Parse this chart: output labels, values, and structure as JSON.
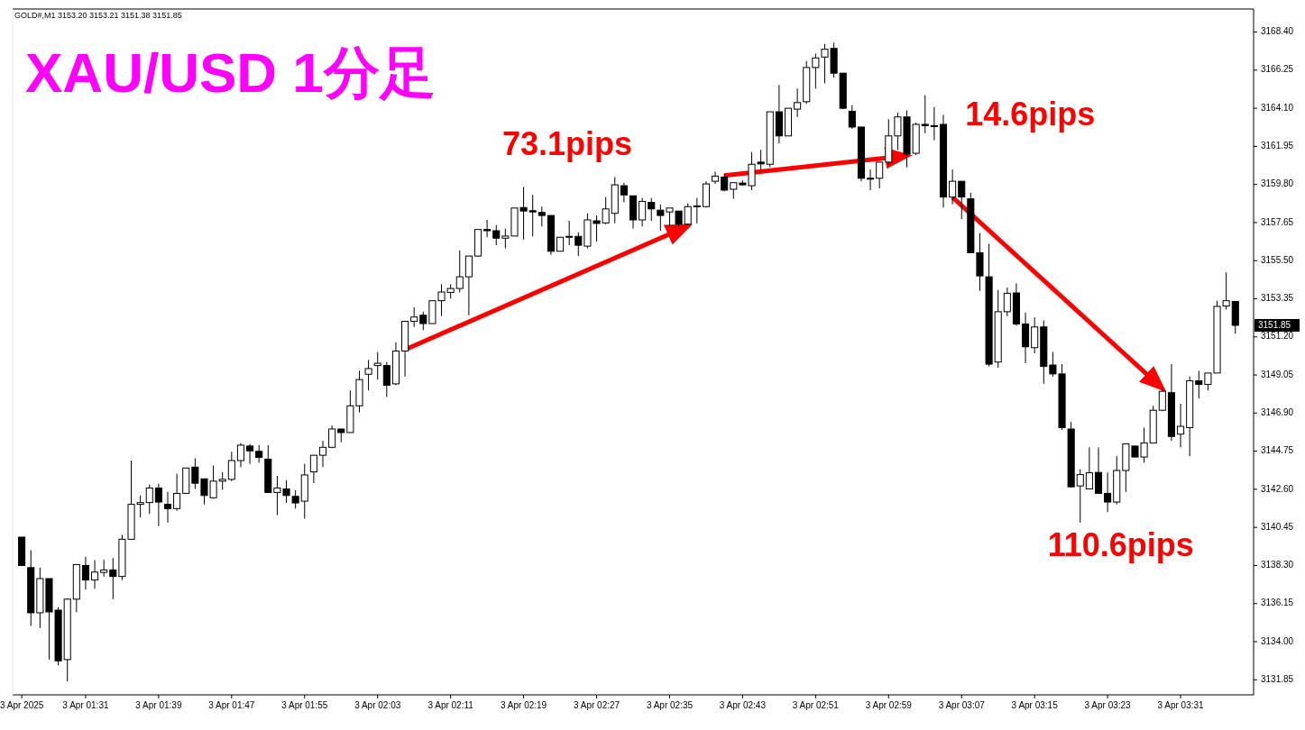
{
  "chart_data": {
    "type": "candlestick",
    "title": "XAU/USD 1分足",
    "annotations": [
      "GOLD#,M1  3153.20 3153.21 3151.38 3151.85",
      "73.1pips",
      "14.6pips",
      "110.6pips",
      "3151.85"
    ],
    "x": [
      "2025-04-03T01:24",
      "2025-04-03T01:25",
      "2025-04-03T01:26",
      "2025-04-03T01:27",
      "2025-04-03T01:28",
      "2025-04-03T01:29",
      "2025-04-03T01:30",
      "2025-04-03T01:31",
      "2025-04-03T01:32",
      "2025-04-03T01:33",
      "2025-04-03T01:34",
      "2025-04-03T01:35",
      "2025-04-03T01:36",
      "2025-04-03T01:37",
      "2025-04-03T01:38",
      "2025-04-03T01:39",
      "2025-04-03T01:40",
      "2025-04-03T01:41",
      "2025-04-03T01:42",
      "2025-04-03T01:43",
      "2025-04-03T01:44",
      "2025-04-03T01:45",
      "2025-04-03T01:46",
      "2025-04-03T01:47",
      "2025-04-03T01:48",
      "2025-04-03T01:49",
      "2025-04-03T01:50",
      "2025-04-03T01:51",
      "2025-04-03T01:52",
      "2025-04-03T01:53",
      "2025-04-03T01:54",
      "2025-04-03T01:55",
      "2025-04-03T01:56",
      "2025-04-03T01:57",
      "2025-04-03T01:58",
      "2025-04-03T01:59",
      "2025-04-03T02:00",
      "2025-04-03T02:01",
      "2025-04-03T02:02",
      "2025-04-03T02:03",
      "2025-04-03T02:04",
      "2025-04-03T02:05",
      "2025-04-03T02:06",
      "2025-04-03T02:07",
      "2025-04-03T02:08",
      "2025-04-03T02:09",
      "2025-04-03T02:10",
      "2025-04-03T02:11",
      "2025-04-03T02:12",
      "2025-04-03T02:13",
      "2025-04-03T02:14",
      "2025-04-03T02:15",
      "2025-04-03T02:16",
      "2025-04-03T02:17",
      "2025-04-03T02:18",
      "2025-04-03T02:19",
      "2025-04-03T02:20",
      "2025-04-03T02:21",
      "2025-04-03T02:22",
      "2025-04-03T02:23",
      "2025-04-03T02:24",
      "2025-04-03T02:25",
      "2025-04-03T02:26",
      "2025-04-03T02:27",
      "2025-04-03T02:28",
      "2025-04-03T02:29",
      "2025-04-03T02:30",
      "2025-04-03T02:31",
      "2025-04-03T02:32",
      "2025-04-03T02:33",
      "2025-04-03T02:34",
      "2025-04-03T02:35",
      "2025-04-03T02:36",
      "2025-04-03T02:37",
      "2025-04-03T02:38",
      "2025-04-03T02:39",
      "2025-04-03T02:40",
      "2025-04-03T02:41",
      "2025-04-03T02:42",
      "2025-04-03T02:43",
      "2025-04-03T02:44",
      "2025-04-03T02:45",
      "2025-04-03T02:46",
      "2025-04-03T02:47",
      "2025-04-03T02:48",
      "2025-04-03T02:49",
      "2025-04-03T02:50",
      "2025-04-03T02:51",
      "2025-04-03T02:52",
      "2025-04-03T02:53",
      "2025-04-03T02:54",
      "2025-04-03T02:55",
      "2025-04-03T02:56",
      "2025-04-03T02:57",
      "2025-04-03T02:58",
      "2025-04-03T02:59",
      "2025-04-03T03:00",
      "2025-04-03T03:01",
      "2025-04-03T03:02",
      "2025-04-03T03:03",
      "2025-04-03T03:04",
      "2025-04-03T03:05",
      "2025-04-03T03:06",
      "2025-04-03T03:07",
      "2025-04-03T03:08",
      "2025-04-03T03:09",
      "2025-04-03T03:10",
      "2025-04-03T03:11",
      "2025-04-03T03:12",
      "2025-04-03T03:13",
      "2025-04-03T03:14",
      "2025-04-03T03:15",
      "2025-04-03T03:16",
      "2025-04-03T03:17",
      "2025-04-03T03:18",
      "2025-04-03T03:19",
      "2025-04-03T03:20",
      "2025-04-03T03:21",
      "2025-04-03T03:22",
      "2025-04-03T03:23",
      "2025-04-03T03:24",
      "2025-04-03T03:25",
      "2025-04-03T03:26",
      "2025-04-03T03:27",
      "2025-04-03T03:28",
      "2025-04-03T03:29",
      "2025-04-03T03:30",
      "2025-04-03T03:31",
      "2025-04-03T03:32",
      "2025-04-03T03:33",
      "2025-04-03T03:34",
      "2025-04-03T03:35",
      "2025-04-03T03:36",
      "2025-04-03T03:37"
    ],
    "ohlc": [
      [
        3139.9,
        3139.9,
        3138.3,
        3138.3
      ],
      [
        3138.18,
        3139.16,
        3134.89,
        3135.63
      ],
      [
        3135.63,
        3138.18,
        3134.77,
        3137.56
      ],
      [
        3137.56,
        3137.56,
        3132.99,
        3135.68
      ],
      [
        3135.78,
        3135.95,
        3132.67,
        3132.92
      ],
      [
        3132.99,
        3136.45,
        3131.76,
        3136.4
      ],
      [
        3136.4,
        3138.35,
        3135.66,
        3138.35
      ],
      [
        3138.3,
        3138.79,
        3136.94,
        3137.48
      ],
      [
        3137.48,
        3138.6,
        3136.99,
        3137.93
      ],
      [
        3137.91,
        3138.62,
        3137.68,
        3138.05
      ],
      [
        3138.05,
        3138.72,
        3136.4,
        3137.68
      ],
      [
        3137.68,
        3140.03,
        3137.48,
        3139.78
      ],
      [
        3139.78,
        3144.22,
        3139.78,
        3141.75
      ],
      [
        3141.75,
        3142.25,
        3141.02,
        3141.85
      ],
      [
        3141.85,
        3142.87,
        3141.21,
        3142.67
      ],
      [
        3142.67,
        3142.91,
        3140.52,
        3141.88
      ],
      [
        3141.75,
        3142.45,
        3140.72,
        3141.51
      ],
      [
        3141.51,
        3143.48,
        3141.39,
        3142.37
      ],
      [
        3142.37,
        3143.8,
        3142.37,
        3143.8
      ],
      [
        3143.85,
        3144.35,
        3142.62,
        3142.94
      ],
      [
        3143.19,
        3143.19,
        3141.75,
        3142.25
      ],
      [
        3142.12,
        3143.93,
        3142.07,
        3143.06
      ],
      [
        3143.06,
        3143.56,
        3142.57,
        3143.16
      ],
      [
        3143.16,
        3144.72,
        3143.06,
        3144.22
      ],
      [
        3144.22,
        3145.21,
        3143.85,
        3145.09
      ],
      [
        3145.04,
        3145.16,
        3144.03,
        3144.77
      ],
      [
        3144.74,
        3145.09,
        3144.1,
        3144.4
      ],
      [
        3144.3,
        3145.09,
        3142.42,
        3142.42
      ],
      [
        3142.42,
        3143.36,
        3141.14,
        3142.67
      ],
      [
        3142.62,
        3143.11,
        3141.83,
        3142.25
      ],
      [
        3142.2,
        3142.55,
        3141.51,
        3141.83
      ],
      [
        3141.93,
        3144.03,
        3140.94,
        3143.41
      ],
      [
        3143.58,
        3144.52,
        3142.94,
        3144.52
      ],
      [
        3144.52,
        3145.34,
        3143.85,
        3144.97
      ],
      [
        3144.97,
        3146.2,
        3144.92,
        3146.0
      ],
      [
        3146.0,
        3146.0,
        3145.26,
        3145.8
      ],
      [
        3145.8,
        3148.18,
        3145.8,
        3147.31
      ],
      [
        3147.31,
        3149.29,
        3146.94,
        3148.79
      ],
      [
        3149.09,
        3149.9,
        3148.18,
        3149.41
      ],
      [
        3149.58,
        3150.35,
        3148.79,
        3149.71
      ],
      [
        3149.58,
        3149.78,
        3147.81,
        3148.47
      ],
      [
        3148.55,
        3150.89,
        3148.47,
        3150.4
      ],
      [
        3150.4,
        3152.08,
        3148.96,
        3152.08
      ],
      [
        3152.08,
        3152.87,
        3151.76,
        3152.32
      ],
      [
        3152.42,
        3152.62,
        3151.58,
        3151.95
      ],
      [
        3151.95,
        3153.24,
        3151.95,
        3153.24
      ],
      [
        3153.24,
        3154.17,
        3152.37,
        3153.73
      ],
      [
        3153.71,
        3154.17,
        3153.36,
        3153.93
      ],
      [
        3153.93,
        3156.08,
        3153.71,
        3154.59
      ],
      [
        3154.59,
        3155.76,
        3152.42,
        3155.76
      ],
      [
        3155.76,
        3157.26,
        3155.71,
        3157.26
      ],
      [
        3157.26,
        3157.8,
        3156.82,
        3157.19
      ],
      [
        3157.19,
        3157.51,
        3156.37,
        3156.77
      ],
      [
        3156.77,
        3157.31,
        3156.2,
        3156.89
      ],
      [
        3156.89,
        3158.47,
        3156.89,
        3158.47
      ],
      [
        3158.5,
        3159.66,
        3156.69,
        3158.3
      ],
      [
        3158.32,
        3159.21,
        3156.87,
        3158.25
      ],
      [
        3158.22,
        3158.55,
        3157.43,
        3158.05
      ],
      [
        3158.05,
        3158.05,
        3155.83,
        3156.03
      ],
      [
        3156.03,
        3156.82,
        3156.03,
        3156.82
      ],
      [
        3156.82,
        3157.75,
        3156.37,
        3156.87
      ],
      [
        3156.87,
        3157.11,
        3155.76,
        3156.37
      ],
      [
        3156.32,
        3158.17,
        3156.2,
        3157.8
      ],
      [
        3157.75,
        3158.05,
        3156.57,
        3157.6
      ],
      [
        3157.63,
        3159.09,
        3157.56,
        3158.42
      ],
      [
        3158.17,
        3160.22,
        3157.61,
        3159.78
      ],
      [
        3159.73,
        3159.9,
        3158.79,
        3159.21
      ],
      [
        3159.16,
        3159.16,
        3157.31,
        3157.8
      ],
      [
        3157.8,
        3159.04,
        3157.43,
        3158.84
      ],
      [
        3158.79,
        3159.04,
        3157.75,
        3158.42
      ],
      [
        3158.35,
        3158.67,
        3157.19,
        3158.05
      ],
      [
        3158.25,
        3158.47,
        3157.43,
        3158.47
      ],
      [
        3158.3,
        3158.3,
        3157.43,
        3157.56
      ],
      [
        3157.56,
        3158.74,
        3157.51,
        3158.55
      ],
      [
        3158.55,
        3159.04,
        3157.61,
        3158.59
      ],
      [
        3158.55,
        3159.98,
        3158.5,
        3159.83
      ],
      [
        3159.98,
        3160.52,
        3159.83,
        3160.27
      ],
      [
        3160.22,
        3160.4,
        3159.41,
        3159.48
      ],
      [
        3159.53,
        3159.9,
        3158.99,
        3159.9
      ],
      [
        3159.88,
        3160.03,
        3159.73,
        3159.78
      ],
      [
        3159.73,
        3161.63,
        3159.48,
        3160.94
      ],
      [
        3161.06,
        3161.75,
        3160.52,
        3160.96
      ],
      [
        3160.94,
        3163.9,
        3160.77,
        3163.9
      ],
      [
        3163.9,
        3165.41,
        3162.12,
        3162.54
      ],
      [
        3162.54,
        3164.1,
        3162.54,
        3164.1
      ],
      [
        3164.05,
        3165.21,
        3163.61,
        3164.42
      ],
      [
        3164.47,
        3166.77,
        3164.35,
        3166.4
      ],
      [
        3166.4,
        3167.19,
        3165.21,
        3166.94
      ],
      [
        3166.99,
        3167.73,
        3165.51,
        3167.43
      ],
      [
        3167.48,
        3167.8,
        3165.83,
        3166.08
      ],
      [
        3166.08,
        3166.08,
        3164.05,
        3164.1
      ],
      [
        3163.93,
        3164.27,
        3162.94,
        3163.04
      ],
      [
        3163.04,
        3163.04,
        3159.98,
        3160.15
      ],
      [
        3160.15,
        3160.64,
        3159.48,
        3160.1
      ],
      [
        3160.15,
        3161.06,
        3159.58,
        3161.06
      ],
      [
        3161.06,
        3163.48,
        3160.89,
        3162.54
      ],
      [
        3162.54,
        3163.85,
        3161.75,
        3163.61
      ],
      [
        3163.61,
        3163.98,
        3160.77,
        3161.51
      ],
      [
        3161.56,
        3163.29,
        3161.46,
        3163.19
      ],
      [
        3163.19,
        3164.84,
        3162.69,
        3163.12
      ],
      [
        3163.12,
        3164.17,
        3162.3,
        3163.09
      ],
      [
        3163.19,
        3163.73,
        3158.5,
        3159.09
      ],
      [
        3159.09,
        3160.64,
        3158.67,
        3159.98
      ],
      [
        3159.98,
        3159.98,
        3157.85,
        3159.09
      ],
      [
        3158.99,
        3159.33,
        3155.95,
        3155.95
      ],
      [
        3155.95,
        3157.06,
        3153.8,
        3154.64
      ],
      [
        3154.59,
        3156.45,
        3149.53,
        3149.66
      ],
      [
        3149.78,
        3153.85,
        3149.46,
        3152.62
      ],
      [
        3152.62,
        3153.98,
        3152.37,
        3153.66
      ],
      [
        3153.68,
        3154.22,
        3151.83,
        3151.93
      ],
      [
        3151.93,
        3152.57,
        3149.71,
        3150.64
      ],
      [
        3150.59,
        3152.3,
        3150.27,
        3151.76
      ],
      [
        3151.76,
        3152.13,
        3148.55,
        3149.53
      ],
      [
        3149.61,
        3150.35,
        3148.96,
        3149.11
      ],
      [
        3149.11,
        3149.66,
        3145.95,
        3146.08
      ],
      [
        3146.0,
        3146.4,
        3142.69,
        3142.74
      ],
      [
        3142.79,
        3143.73,
        3140.72,
        3143.43
      ],
      [
        3142.62,
        3144.96,
        3142.62,
        3143.53
      ],
      [
        3143.55,
        3144.96,
        3142.37,
        3142.37
      ],
      [
        3142.37,
        3143.55,
        3141.31,
        3141.88
      ],
      [
        3141.88,
        3144.47,
        3141.75,
        3143.66
      ],
      [
        3143.66,
        3145.16,
        3142.45,
        3145.16
      ],
      [
        3145.04,
        3145.04,
        3144.42,
        3144.42
      ],
      [
        3144.42,
        3146.08,
        3144.1,
        3145.21
      ],
      [
        3145.21,
        3147.31,
        3145.21,
        3147.06
      ],
      [
        3147.06,
        3148.23,
        3147.0,
        3148.13
      ],
      [
        3148.05,
        3149.66,
        3145.34,
        3145.58
      ],
      [
        3145.71,
        3147.43,
        3144.96,
        3146.15
      ],
      [
        3146.08,
        3148.96,
        3144.47,
        3148.72
      ],
      [
        3148.72,
        3149.29,
        3147.73,
        3148.52
      ],
      [
        3148.52,
        3149.16,
        3148.18,
        3149.16
      ],
      [
        3149.16,
        3153.24,
        3149.16,
        3152.92
      ],
      [
        3152.94,
        3154.84,
        3152.74,
        3153.24
      ],
      [
        3153.2,
        3153.21,
        3151.38,
        3151.85
      ]
    ],
    "series": [
      {
        "type": "line",
        "color": "#ff0000",
        "x": [
          "2025-04-03T02:06",
          "2025-04-03T02:37"
        ],
        "values": [
          3150.48,
          3157.45
        ]
      },
      {
        "type": "line",
        "color": "#ff0000",
        "x": [
          "2025-04-03T02:41",
          "2025-04-03T03:01"
        ],
        "values": [
          3160.3,
          3161.42
        ]
      },
      {
        "type": "line",
        "color": "#ff0000",
        "x": [
          "2025-04-03T03:06",
          "2025-04-03T03:29"
        ],
        "values": [
          3159.08,
          3148.29
        ]
      }
    ],
    "xlim": [
      "2025-04-03T01:23",
      "2025-04-03T03:39"
    ],
    "xticks": [
      {
        "value": "2025-04-03T01:24",
        "label": "3 Apr 2025"
      },
      {
        "value": "2025-04-03T01:31",
        "label": "3 Apr 01:31"
      },
      {
        "value": "2025-04-03T01:39",
        "label": "3 Apr 01:39"
      },
      {
        "value": "2025-04-03T01:47",
        "label": "3 Apr 01:47"
      },
      {
        "value": "2025-04-03T01:55",
        "label": "3 Apr 01:55"
      },
      {
        "value": "2025-04-03T02:03",
        "label": "3 Apr 02:03"
      },
      {
        "value": "2025-04-03T02:11",
        "label": "3 Apr 02:11"
      },
      {
        "value": "2025-04-03T02:19",
        "label": "3 Apr 02:19"
      },
      {
        "value": "2025-04-03T02:27",
        "label": "3 Apr 02:27"
      },
      {
        "value": "2025-04-03T02:35",
        "label": "3 Apr 02:35"
      },
      {
        "value": "2025-04-03T02:43",
        "label": "3 Apr 02:43"
      },
      {
        "value": "2025-04-03T02:51",
        "label": "3 Apr 02:51"
      },
      {
        "value": "2025-04-03T02:59",
        "label": "3 Apr 02:59"
      },
      {
        "value": "2025-04-03T03:07",
        "label": "3 Apr 03:07"
      },
      {
        "value": "2025-04-03T03:15",
        "label": "3 Apr 03:15"
      },
      {
        "value": "2025-04-03T03:23",
        "label": "3 Apr 03:23"
      },
      {
        "value": "2025-04-03T03:31",
        "label": "3 Apr 03:31"
      }
    ],
    "ylim": [
      3131.0,
      3169.7
    ],
    "yticks": [
      {
        "value": 3131.85,
        "label": "3131.85"
      },
      {
        "value": 3134.0,
        "label": "3134.00"
      },
      {
        "value": 3136.15,
        "label": "3136.15"
      },
      {
        "value": 3138.3,
        "label": "3138.30"
      },
      {
        "value": 3140.45,
        "label": "3140.45"
      },
      {
        "value": 3142.6,
        "label": "3142.60"
      },
      {
        "value": 3144.75,
        "label": "3144.75"
      },
      {
        "value": 3146.9,
        "label": "3146.90"
      },
      {
        "value": 3149.05,
        "label": "3149.05"
      },
      {
        "value": 3151.2,
        "label": "3151.20"
      },
      {
        "value": 3153.35,
        "label": "3153.35"
      },
      {
        "value": 3155.5,
        "label": "3155.50"
      },
      {
        "value": 3157.65,
        "label": "3157.65"
      },
      {
        "value": 3159.8,
        "label": "3159.80"
      },
      {
        "value": 3161.95,
        "label": "3161.95"
      },
      {
        "value": 3164.1,
        "label": "3164.10"
      },
      {
        "value": 3166.25,
        "label": "3166.25"
      },
      {
        "value": 3168.4,
        "label": "3168.40"
      }
    ]
  }
}
